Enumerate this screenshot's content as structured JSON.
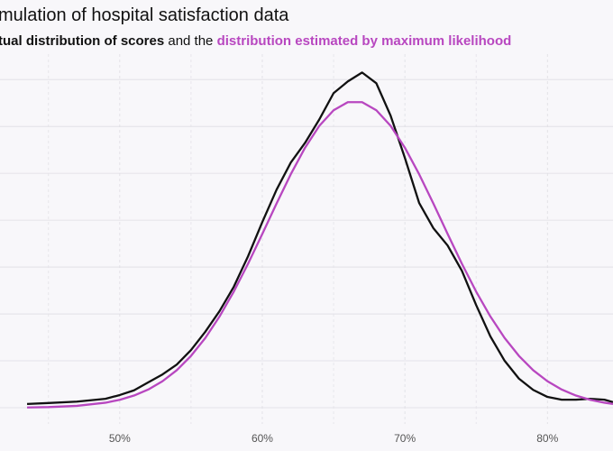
{
  "chart_data": {
    "type": "line",
    "title": "mulation of hospital satisfaction data",
    "subtitle_parts": [
      {
        "text": "tual distribution of scores",
        "color": "#111111",
        "bold": true
      },
      {
        "text": " and the ",
        "color": "#111111",
        "bold": false
      },
      {
        "text": "distribution estimated by maximum likelihood",
        "color": "#b847c0",
        "bold": true
      }
    ],
    "x": [
      43.5,
      45,
      47,
      49,
      50,
      51,
      52,
      53,
      54,
      55,
      56,
      57,
      58,
      59,
      60,
      61,
      62,
      63,
      64,
      65,
      66,
      67,
      68,
      69,
      70,
      71,
      72,
      73,
      74,
      75,
      76,
      77,
      78,
      79,
      80,
      81,
      82,
      83,
      84,
      84.6
    ],
    "series": [
      {
        "name": "actual distribution of scores",
        "color": "#111111",
        "values": [
          0.0008,
          0.001,
          0.0013,
          0.0019,
          0.0027,
          0.0037,
          0.0054,
          0.0071,
          0.0092,
          0.0123,
          0.0162,
          0.0206,
          0.0258,
          0.0323,
          0.0396,
          0.0465,
          0.0523,
          0.0565,
          0.0615,
          0.0671,
          0.0696,
          0.0715,
          0.0692,
          0.0623,
          0.0533,
          0.0437,
          0.0383,
          0.0346,
          0.0292,
          0.0219,
          0.0152,
          0.01,
          0.0062,
          0.0038,
          0.0023,
          0.0017,
          0.0017,
          0.0019,
          0.0017,
          0.0012
        ]
      },
      {
        "name": "distribution estimated by maximum likelihood",
        "color": "#b847c0",
        "values": [
          5e-05,
          0.00013,
          0.0004,
          0.00107,
          0.00169,
          0.00259,
          0.00388,
          0.00565,
          0.008,
          0.01106,
          0.01487,
          0.01945,
          0.02477,
          0.03071,
          0.03707,
          0.04356,
          0.04982,
          0.05547,
          0.06013,
          0.06345,
          0.06518,
          0.06518,
          0.06345,
          0.06013,
          0.05547,
          0.04982,
          0.04356,
          0.03707,
          0.03071,
          0.02477,
          0.01945,
          0.01487,
          0.01106,
          0.008,
          0.00565,
          0.00388,
          0.00259,
          0.00169,
          0.00107,
          0.0008
        ]
      }
    ],
    "xlim": [
      41.6,
      84.6
    ],
    "xticks": [
      {
        "value": 50,
        "label": "50%"
      },
      {
        "value": 60,
        "label": "60%"
      },
      {
        "value": 70,
        "label": "70%"
      },
      {
        "value": 80,
        "label": "80%"
      }
    ],
    "ylim": [
      0,
      0.0735
    ],
    "yticks": [
      0,
      0.01,
      0.02,
      0.03,
      0.04,
      0.05,
      0.06,
      0.07
    ],
    "grid": true
  }
}
